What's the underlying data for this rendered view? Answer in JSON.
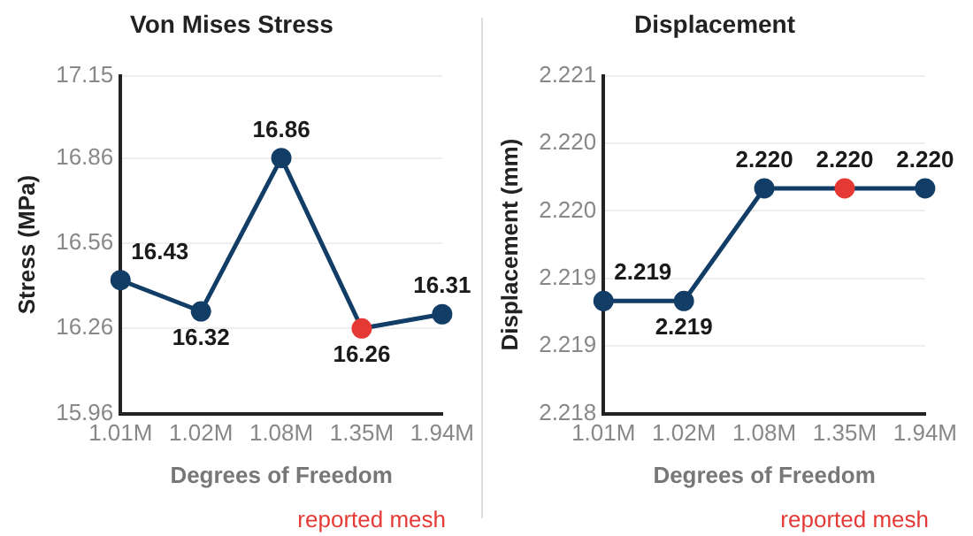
{
  "chart_data": [
    {
      "type": "line",
      "title": "Von Mises Stress",
      "xlabel": "Degrees of Freedom",
      "ylabel": "Stress (MPa)",
      "categories": [
        "1.01M",
        "1.02M",
        "1.08M",
        "1.35M",
        "1.94M"
      ],
      "series": [
        {
          "color": "#123d66",
          "colors": [
            "#123d66",
            "#123d66",
            "#123d66",
            "#e53935",
            "#123d66"
          ],
          "values": [
            16.43,
            16.32,
            16.86,
            16.26,
            16.31
          ],
          "value_labels": [
            "16.43",
            "16.32",
            "16.86",
            "16.26",
            "16.31"
          ]
        }
      ],
      "ylim": [
        15.96,
        17.15
      ],
      "yticks": [
        15.96,
        16.26,
        16.56,
        16.86,
        17.15
      ],
      "grid": "y",
      "legend": false,
      "marker": "circle",
      "line_style": "solid",
      "annotations": [
        "reported mesh"
      ]
    },
    {
      "type": "line",
      "title": "Displacement",
      "xlabel": "Degrees of Freedom",
      "ylabel": "Displacement (mm)",
      "categories": [
        "1.01M",
        "1.02M",
        "1.08M",
        "1.35M",
        "1.94M"
      ],
      "series": [
        {
          "color": "#123d66",
          "colors": [
            "#123d66",
            "#123d66",
            "#123d66",
            "#e53935",
            "#123d66"
          ],
          "values": [
            2.219,
            2.219,
            2.22,
            2.22,
            2.22
          ],
          "value_labels": [
            "2.219",
            "2.219",
            "2.220",
            "2.220",
            "2.220"
          ]
        }
      ],
      "ylim": [
        2.218,
        2.221
      ],
      "yticks": [
        2.218,
        {
          "value": 2.2186,
          "label": "2.219"
        },
        {
          "value": 2.2192,
          "label": "2.219"
        },
        {
          "value": 2.2198,
          "label": "2.220"
        },
        {
          "value": 2.2204,
          "label": "2.220"
        },
        2.221
      ],
      "grid": "y",
      "legend": false,
      "marker": "circle",
      "line_style": "solid",
      "annotations": [
        "reported mesh"
      ]
    }
  ]
}
